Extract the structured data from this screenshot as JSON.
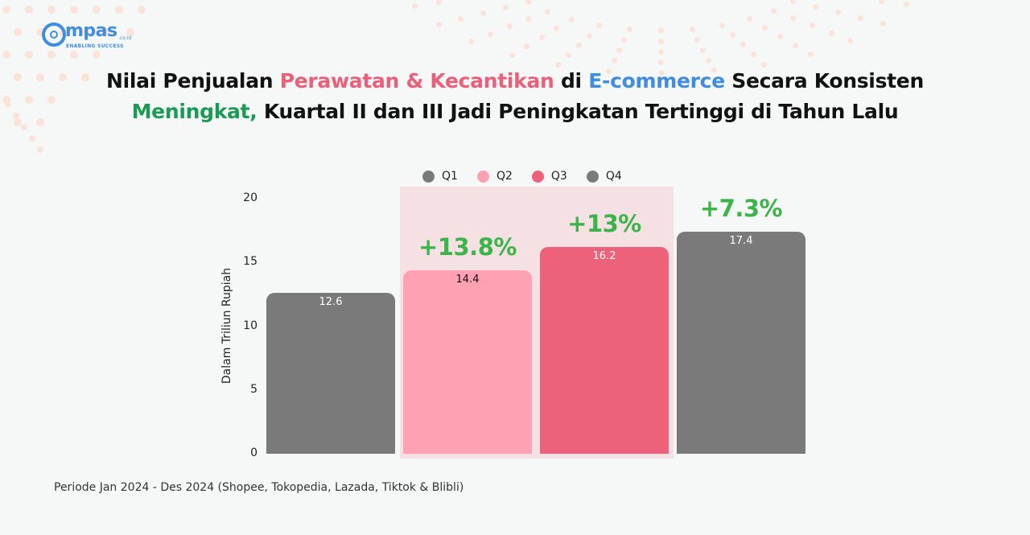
{
  "logo": {
    "word": "mpas",
    "tld": ".co.id",
    "tagline": "ENABLING SUCCESS",
    "color": "#3f8de0"
  },
  "title": {
    "line1": [
      {
        "text": "Nilai Penjualan ",
        "color": "black"
      },
      {
        "text": "Perawatan & Kecantikan",
        "color": "pink"
      },
      {
        "text": " di ",
        "color": "black"
      },
      {
        "text": "E-commerce",
        "color": "blue"
      },
      {
        "text": " Secara Konsisten",
        "color": "black"
      }
    ],
    "line2": [
      {
        "text": "Meningkat,",
        "color": "green"
      },
      {
        "text": " Kuartal II dan III Jadi Peningkatan Tertinggi di Tahun Lalu",
        "color": "black"
      }
    ],
    "seg1": "Nilai Penjualan ",
    "seg2": "Perawatan & Kecantikan",
    "seg3": " di ",
    "seg4": "E-commerce",
    "seg5": " Secara Konsisten",
    "seg6": "Meningkat,",
    "seg7": " Kuartal II dan III Jadi Peningkatan Tertinggi di Tahun Lalu"
  },
  "colors": {
    "title_pink": "#ea5f79",
    "title_blue": "#3f8de0",
    "title_green": "#1a9a55",
    "q1": "#7a7a7a",
    "q2": "#fea1b2",
    "q3": "#ee617b",
    "q4": "#7a7a7a",
    "growth": "#3bb44a",
    "highlight_bg": "#f5e1e4"
  },
  "chart_data": {
    "type": "bar",
    "title": "Nilai Penjualan Perawatan & Kecantikan di E-commerce Secara Konsisten Meningkat, Kuartal II dan III Jadi Peningkatan Tertinggi di Tahun Lalu",
    "categories": [
      "Q1",
      "Q2",
      "Q3",
      "Q4"
    ],
    "values": [
      12.6,
      14.4,
      16.2,
      17.4
    ],
    "value_labels": [
      "12.6",
      "14.4",
      "16.2",
      "17.4"
    ],
    "growth_labels": [
      "",
      "+13.8%",
      "+13%",
      "+7.3%"
    ],
    "xlabel": "",
    "ylabel": "Dalam Triliun Rupiah",
    "ylim": [
      0,
      20
    ],
    "yticks": [
      0,
      5,
      10,
      15,
      20
    ],
    "legend": [
      "Q1",
      "Q2",
      "Q3",
      "Q4"
    ],
    "legend_position": "top",
    "grid": false,
    "highlighted_categories": [
      "Q2",
      "Q3"
    ]
  },
  "legend": {
    "items": [
      {
        "label": "Q1"
      },
      {
        "label": "Q2"
      },
      {
        "label": "Q3"
      },
      {
        "label": "Q4"
      }
    ]
  },
  "axis": {
    "ylabel": "Dalam Triliun Rupiah",
    "ticks": [
      "0",
      "5",
      "10",
      "15",
      "20"
    ]
  },
  "bars": [
    {
      "label": "12.6",
      "growth": ""
    },
    {
      "label": "14.4",
      "growth": "+13.8%"
    },
    {
      "label": "16.2",
      "growth": "+13%"
    },
    {
      "label": "17.4",
      "growth": "+7.3%"
    }
  ],
  "footnote": "Periode Jan 2024 - Des 2024 (Shopee, Tokopedia, Lazada, Tiktok & Blibli)"
}
